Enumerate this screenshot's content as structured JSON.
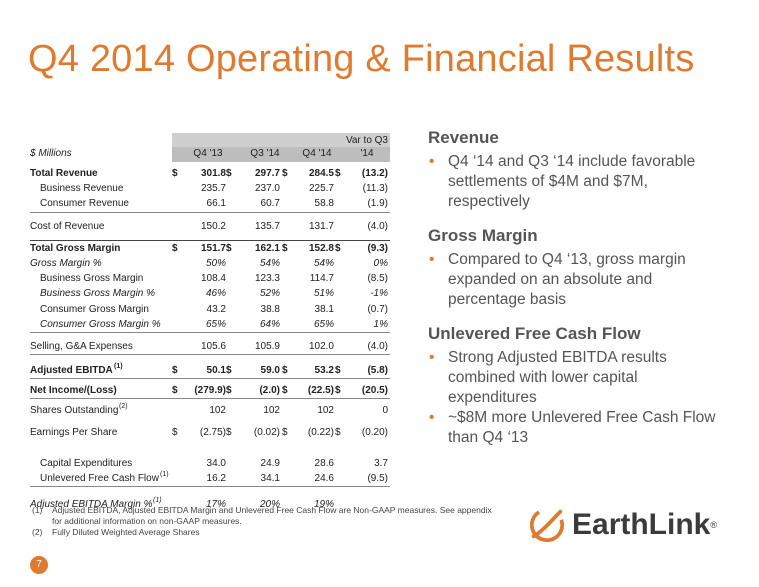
{
  "title": "Q4 2014 Operating & Financial Results",
  "table": {
    "unit_label": "$ Millions",
    "columns": [
      "Q4 '13",
      "Q3 '14",
      "Q4 '14"
    ],
    "var_header_line1": "Var to Q3",
    "var_header_line2": "'14",
    "rows": [
      {
        "label": "Total Revenue",
        "v": [
          "301.8",
          "297.7",
          "284.5",
          "(13.2)"
        ]
      },
      {
        "label": "Business Revenue",
        "v": [
          "235.7",
          "237.0",
          "225.7",
          "(11.3)"
        ]
      },
      {
        "label": "Consumer Revenue",
        "v": [
          "66.1",
          "60.7",
          "58.8",
          "(1.9)"
        ]
      },
      {
        "label": "Cost of Revenue",
        "v": [
          "150.2",
          "135.7",
          "131.7",
          "(4.0)"
        ]
      },
      {
        "label": "Total Gross Margin",
        "v": [
          "151.7",
          "162.1",
          "152.8",
          "(9.3)"
        ]
      },
      {
        "label": "Gross Margin %",
        "v": [
          "50%",
          "54%",
          "54%",
          "0%"
        ]
      },
      {
        "label": "Business Gross Margin",
        "v": [
          "108.4",
          "123.3",
          "114.7",
          "(8.5)"
        ]
      },
      {
        "label": "Business Gross Margin %",
        "v": [
          "46%",
          "52%",
          "51%",
          "-1%"
        ]
      },
      {
        "label": "Consumer Gross Margin",
        "v": [
          "43.2",
          "38.8",
          "38.1",
          "(0.7)"
        ]
      },
      {
        "label": "Consumer Gross Margin %",
        "v": [
          "65%",
          "64%",
          "65%",
          "1%"
        ]
      },
      {
        "label": "Selling, G&A Expenses",
        "v": [
          "105.6",
          "105.9",
          "102.0",
          "(4.0)"
        ]
      },
      {
        "label": "Adjusted EBITDA",
        "sup": "(1)",
        "v": [
          "50.1",
          "59.0",
          "53.2",
          "(5.8)"
        ]
      },
      {
        "label": "Net Income/(Loss)",
        "v": [
          "(279.9)",
          "(2.0)",
          "(22.5)",
          "(20.5)"
        ]
      },
      {
        "label": "Shares Outstanding",
        "sup": "(2)",
        "v": [
          "102",
          "102",
          "102",
          "0"
        ]
      },
      {
        "label": "Earnings Per Share",
        "v": [
          "(2.75)",
          "(0.02)",
          "(0.22)",
          "(0.20)"
        ]
      },
      {
        "label": "Capital Expenditures",
        "v": [
          "34.0",
          "24.9",
          "28.6",
          "3.7"
        ]
      },
      {
        "label": "Unlevered Free Cash Flow",
        "sup": "(1)",
        "v": [
          "16.2",
          "34.1",
          "24.6",
          "(9.5)"
        ]
      },
      {
        "label": "Adjusted EBITDA Margin %",
        "sup": "(1)",
        "v": [
          "17%",
          "20%",
          "19%",
          ""
        ]
      }
    ],
    "dollar": "$"
  },
  "sections": [
    {
      "heading": "Revenue",
      "bullets": [
        "Q4 ‘14 and Q3 ‘14 include favorable settlements of $4M and $7M, respectively"
      ]
    },
    {
      "heading": "Gross Margin",
      "bullets": [
        "Compared to Q4 ‘13, gross margin expanded on an absolute and percentage basis"
      ]
    },
    {
      "heading": "Unlevered Free Cash Flow",
      "bullets": [
        "Strong Adjusted EBITDA results combined with lower capital expenditures",
        "~$8M more Unlevered Free Cash Flow than Q4 ‘13"
      ]
    }
  ],
  "bullet_glyph": "•",
  "footnotes": [
    {
      "num": "(1)",
      "text": "Adjusted EBITDA, Adjusted EBITDA Margin and Unlevered Free Cash Flow are Non-GAAP measures.  See appendix for additional information on non-GAAP measures."
    },
    {
      "num": "(2)",
      "text": "Fully Diluted Weighted Average Shares"
    }
  ],
  "page_number": "7",
  "logo": {
    "name": "EarthLink",
    "reg": "®"
  },
  "colors": {
    "accent": "#e07a2e",
    "text": "#555555"
  }
}
